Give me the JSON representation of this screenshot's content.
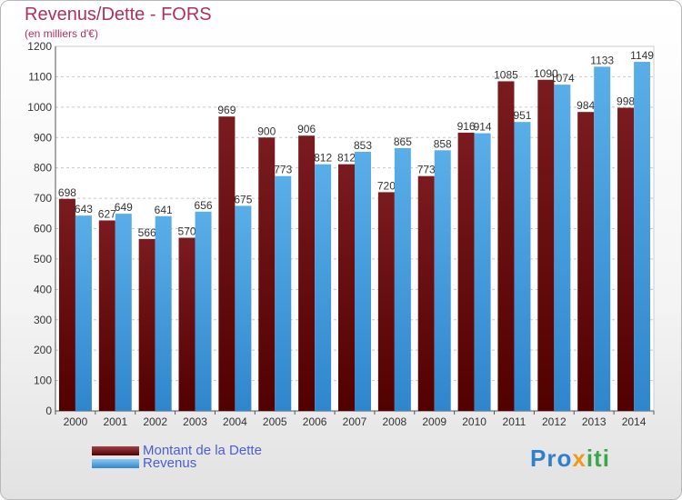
{
  "title": "Revenus/Dette - FORS",
  "subtitle": "(en milliers d'€)",
  "legend": {
    "dette_label": "Montant de la Dette",
    "revenus_label": "Revenus"
  },
  "colors": {
    "dette": "#7a1b1f",
    "dette_dark": "#520000",
    "revenus": "#5aaee8",
    "revenus_dark": "#2f86cc",
    "title": "#b0305a"
  },
  "logo": {
    "part1": "Pro",
    "part2": "x",
    "part3": "iti"
  },
  "chart_data": {
    "type": "bar",
    "categories": [
      "2000",
      "2001",
      "2002",
      "2003",
      "2004",
      "2005",
      "2006",
      "2007",
      "2008",
      "2009",
      "2010",
      "2011",
      "2012",
      "2013",
      "2014"
    ],
    "series": [
      {
        "name": "Montant de la Dette",
        "values": [
          698,
          627,
          566,
          570,
          969,
          900,
          906,
          812,
          720,
          773,
          916,
          1085,
          1090,
          984,
          998
        ]
      },
      {
        "name": "Revenus",
        "values": [
          643,
          649,
          641,
          656,
          675,
          773,
          812,
          853,
          865,
          858,
          914,
          951,
          1074,
          1133,
          1149
        ]
      }
    ],
    "ylim": [
      0,
      1200
    ],
    "yticks": [
      0,
      100,
      200,
      300,
      400,
      500,
      600,
      700,
      800,
      900,
      1000,
      1100,
      1200
    ],
    "grid": true,
    "legend_position": "bottom-left"
  }
}
